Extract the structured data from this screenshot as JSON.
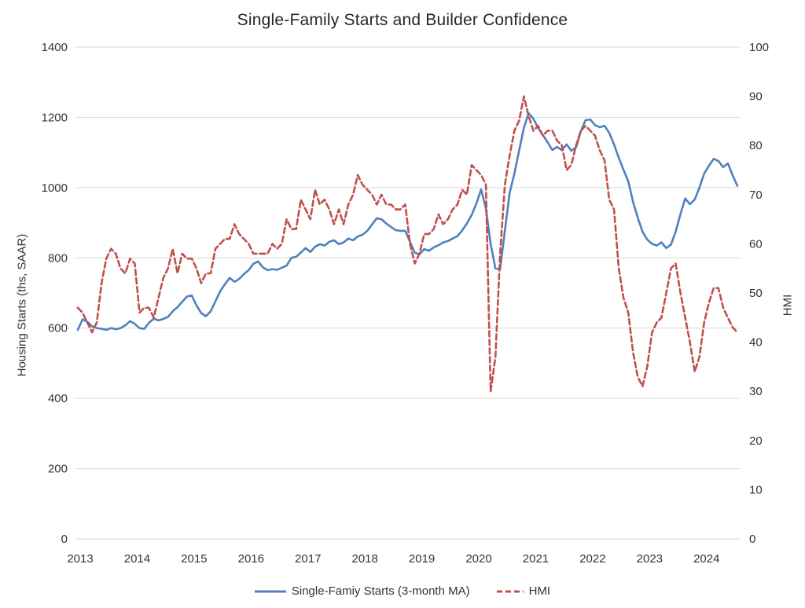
{
  "title": "Single-Family Starts and Builder Confidence",
  "legend": {
    "starts_label": "Single-Famiy Starts (3-month MA)",
    "hmi_label": "HMI"
  },
  "chart_data": {
    "type": "line",
    "title": "Single-Family Starts and Builder Confidence",
    "frequency": "monthly",
    "x_start": "2013-01",
    "x_end": "2024-08",
    "x_tick_labels": [
      "2013",
      "2014",
      "2015",
      "2016",
      "2017",
      "2018",
      "2019",
      "2020",
      "2021",
      "2022",
      "2023",
      "2024"
    ],
    "left_axis": {
      "label": "Housing Starts (ths, SAAR)",
      "min": 0,
      "max": 1400,
      "tick_step": 200
    },
    "right_axis": {
      "label": "HMI",
      "min": 0,
      "max": 100,
      "tick_step": 10
    },
    "grid": "horizontal",
    "legend_position": "bottom",
    "colors": {
      "starts": "#4F81BD",
      "hmi": "#C0504D",
      "gridline": "#d9d9d9"
    },
    "series": [
      {
        "name": "Single-Famiy Starts (3-month MA)",
        "axis": "left",
        "style": "solid",
        "color": "#4F81BD",
        "values": [
          595,
          625,
          618,
          605,
          600,
          598,
          595,
          600,
          597,
          600,
          608,
          620,
          612,
          600,
          598,
          615,
          627,
          622,
          626,
          632,
          648,
          660,
          675,
          690,
          693,
          665,
          643,
          634,
          648,
          676,
          705,
          725,
          743,
          732,
          740,
          754,
          765,
          783,
          790,
          773,
          765,
          768,
          766,
          772,
          778,
          800,
          803,
          815,
          828,
          817,
          832,
          839,
          835,
          846,
          850,
          839,
          844,
          855,
          850,
          861,
          866,
          877,
          895,
          913,
          910,
          898,
          888,
          879,
          877,
          877,
          846,
          815,
          810,
          825,
          820,
          830,
          836,
          844,
          848,
          855,
          862,
          878,
          898,
          922,
          955,
          995,
          940,
          840,
          770,
          768,
          877,
          985,
          1040,
          1105,
          1170,
          1212,
          1196,
          1170,
          1150,
          1129,
          1107,
          1116,
          1107,
          1123,
          1105,
          1115,
          1160,
          1192,
          1194,
          1178,
          1172,
          1176,
          1156,
          1123,
          1085,
          1051,
          1018,
          960,
          915,
          875,
          852,
          840,
          835,
          844,
          828,
          838,
          875,
          925,
          969,
          953,
          966,
          1000,
          1040,
          1062,
          1082,
          1076,
          1058,
          1069,
          1035,
          1005
        ]
      },
      {
        "name": "HMI",
        "axis": "right",
        "style": "dashed",
        "color": "#C0504D",
        "values": [
          47,
          46,
          44,
          42,
          44,
          52,
          57,
          59,
          58,
          55,
          54,
          57,
          56,
          46,
          47,
          47,
          45,
          49,
          53,
          55,
          59,
          54,
          58,
          57,
          57,
          55,
          52,
          54,
          54,
          59,
          60,
          61,
          61,
          64,
          62,
          61,
          60,
          58,
          58,
          58,
          58,
          60,
          59,
          60,
          65,
          63,
          63,
          69,
          67,
          65,
          71,
          68,
          69,
          67,
          64,
          67,
          64,
          68,
          70,
          74,
          72,
          71,
          70,
          68,
          70,
          68,
          68,
          67,
          67,
          68,
          60,
          56,
          58,
          62,
          62,
          63,
          66,
          64,
          65,
          67,
          68,
          71,
          70,
          76,
          75,
          74,
          72,
          30,
          37,
          58,
          72,
          78,
          83,
          85,
          90,
          86,
          83,
          84,
          82,
          83,
          83,
          81,
          80,
          75,
          76,
          80,
          83,
          84,
          83,
          82,
          79,
          77,
          69,
          67,
          55,
          49,
          46,
          38,
          33,
          31,
          35,
          42,
          44,
          45,
          50,
          55,
          56,
          50,
          45,
          40,
          34,
          37,
          44,
          48,
          51,
          51,
          47,
          45,
          43,
          42
        ]
      }
    ]
  }
}
